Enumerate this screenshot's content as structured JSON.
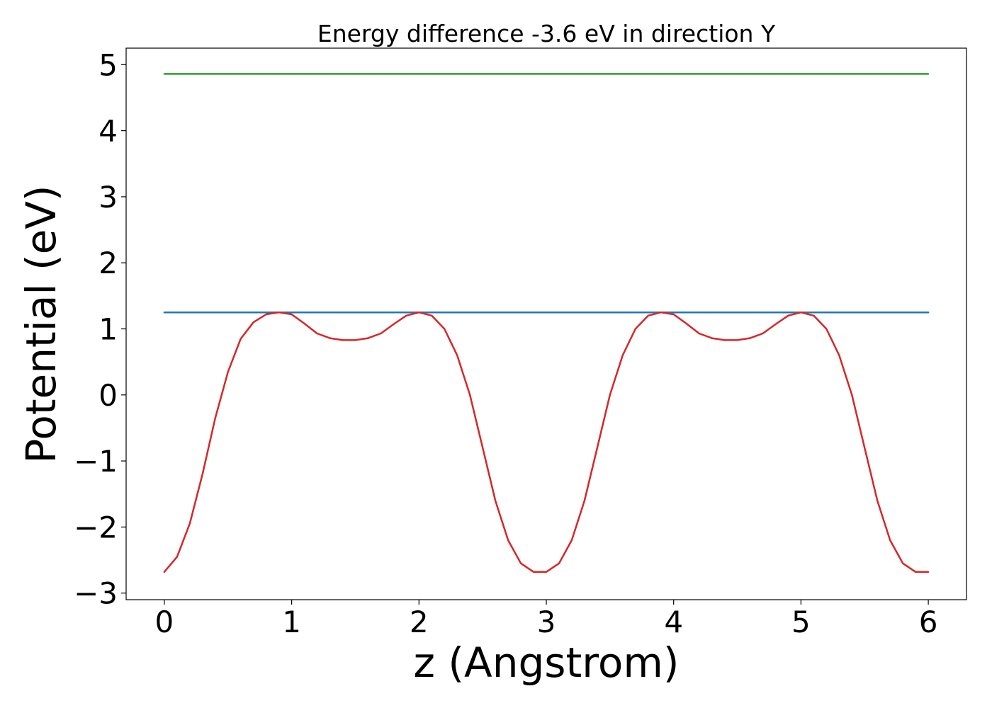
{
  "chart_data": {
    "type": "line",
    "title": "Energy difference -3.6 eV in direction Y",
    "xlabel": "z (Angstrom)",
    "ylabel": "Potential (eV)",
    "xlim": [
      -0.3,
      6.3
    ],
    "ylim": [
      -3.1,
      5.25
    ],
    "x_ticks": [
      0,
      1,
      2,
      3,
      4,
      5,
      6
    ],
    "x_tick_labels": [
      "0",
      "1",
      "2",
      "3",
      "4",
      "5",
      "6"
    ],
    "y_ticks": [
      -3,
      -2,
      -1,
      0,
      1,
      2,
      3,
      4,
      5
    ],
    "y_tick_labels": [
      "−3",
      "−2",
      "−1",
      "0",
      "1",
      "2",
      "3",
      "4",
      "5"
    ],
    "grid": false,
    "series": [
      {
        "color": "#d62728",
        "x": [
          0,
          0.1,
          0.2,
          0.3,
          0.4,
          0.5,
          0.6,
          0.7,
          0.8,
          0.9,
          1.0,
          1.1,
          1.2,
          1.3,
          1.4,
          1.5,
          1.6,
          1.7,
          1.8,
          1.9,
          2.0,
          2.1,
          2.2,
          2.3,
          2.4,
          2.5,
          2.6,
          2.7,
          2.8,
          2.9,
          3.0,
          3.1,
          3.2,
          3.3,
          3.4,
          3.5,
          3.6,
          3.7,
          3.8,
          3.9,
          4.0,
          4.1,
          4.2,
          4.3,
          4.4,
          4.5,
          4.6,
          4.7,
          4.8,
          4.9,
          5.0,
          5.1,
          5.2,
          5.3,
          5.4,
          5.5,
          5.6,
          5.7,
          5.8,
          5.9,
          6.0
        ],
        "values": [
          -2.68,
          -2.45,
          -1.95,
          -1.2,
          -0.35,
          0.35,
          0.85,
          1.1,
          1.22,
          1.25,
          1.22,
          1.08,
          0.93,
          0.86,
          0.83,
          0.83,
          0.86,
          0.93,
          1.07,
          1.2,
          1.25,
          1.2,
          1.0,
          0.6,
          0.0,
          -0.8,
          -1.6,
          -2.2,
          -2.55,
          -2.68,
          -2.68,
          -2.55,
          -2.2,
          -1.6,
          -0.8,
          0.0,
          0.6,
          1.0,
          1.2,
          1.25,
          1.22,
          1.08,
          0.93,
          0.86,
          0.83,
          0.83,
          0.86,
          0.93,
          1.07,
          1.2,
          1.25,
          1.2,
          1.0,
          0.6,
          0.0,
          -0.8,
          -1.6,
          -2.2,
          -2.55,
          -2.68,
          -2.68
        ]
      },
      {
        "color": "#1f77b4",
        "x": [
          0,
          6
        ],
        "values": [
          1.25,
          1.25
        ]
      },
      {
        "color": "#2ca02c",
        "x": [
          0,
          6
        ],
        "values": [
          4.86,
          4.86
        ]
      }
    ]
  }
}
